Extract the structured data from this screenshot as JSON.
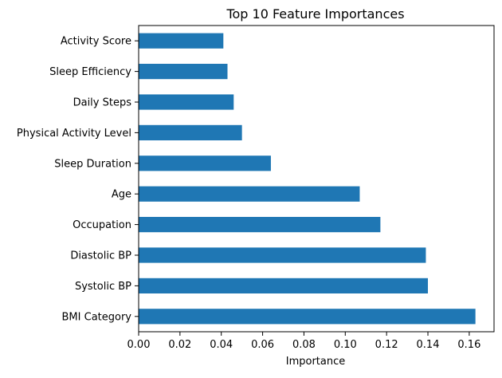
{
  "chart_data": {
    "type": "bar",
    "orientation": "horizontal",
    "title": "Top 10 Feature Importances",
    "xlabel": "Importance",
    "ylabel": "",
    "xlim": [
      0,
      0.172
    ],
    "xticks": [
      0.0,
      0.02,
      0.04,
      0.06,
      0.08,
      0.1,
      0.12,
      0.14,
      0.16
    ],
    "xtick_labels": [
      "0.00",
      "0.02",
      "0.04",
      "0.06",
      "0.08",
      "0.10",
      "0.12",
      "0.14",
      "0.16"
    ],
    "categories": [
      "Activity Score",
      "Sleep Efficiency",
      "Daily Steps",
      "Physical Activity Level",
      "Sleep Duration",
      "Age",
      "Occupation",
      "Diastolic BP",
      "Systolic BP",
      "BMI Category"
    ],
    "values": [
      0.041,
      0.043,
      0.046,
      0.05,
      0.064,
      0.107,
      0.117,
      0.139,
      0.14,
      0.163
    ],
    "bar_color": "#1f77b4",
    "grid": false
  }
}
